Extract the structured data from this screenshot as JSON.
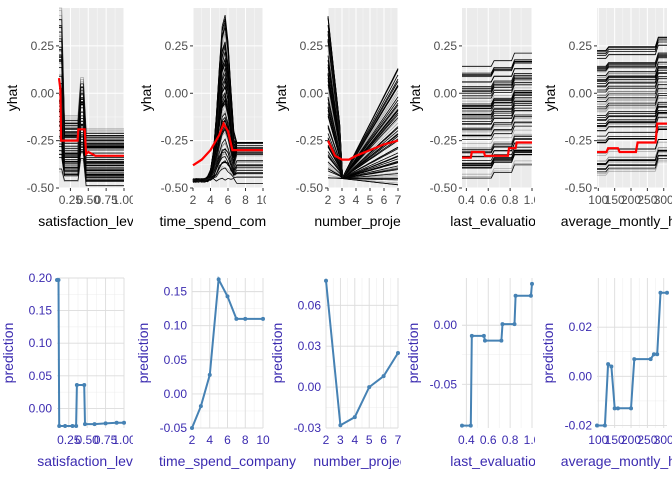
{
  "chart_data": [
    {
      "type": "line",
      "style": "ice",
      "xlabel": "satisfaction_level",
      "ylabel": "yhat",
      "xlim": [
        0.09,
        1.0
      ],
      "ylim": [
        -0.5,
        0.45
      ],
      "xticks": [
        0.25,
        0.5,
        0.75,
        1.0
      ],
      "xtick_labels": [
        "0.25",
        "0.50",
        "0.75",
        "1.00"
      ],
      "yticks": [
        -0.5,
        -0.25,
        0.0,
        0.25
      ],
      "ytick_labels": [
        "-0.50",
        "-0.25",
        "0.00",
        "0.25"
      ],
      "pdp": {
        "x": [
          0.09,
          0.11,
          0.12,
          0.35,
          0.36,
          0.45,
          0.47,
          0.5,
          0.6,
          0.75,
          1.0
        ],
        "y": [
          0.08,
          0.02,
          -0.25,
          -0.25,
          -0.19,
          -0.19,
          -0.32,
          -0.31,
          -0.33,
          -0.33,
          -0.33
        ]
      }
    },
    {
      "type": "line",
      "style": "ice",
      "xlabel": "time_spend_company",
      "ylabel": "yhat",
      "xlim": [
        2,
        10
      ],
      "ylim": [
        -0.5,
        0.45
      ],
      "xticks": [
        2,
        4,
        6,
        8,
        10
      ],
      "xtick_labels": [
        "2",
        "4",
        "6",
        "8",
        "10"
      ],
      "yticks": [
        -0.5,
        -0.25,
        0.0,
        0.25
      ],
      "ytick_labels": [
        "-0.50",
        "-0.25",
        "0.00",
        "0.25"
      ],
      "pdp": {
        "x": [
          2,
          3,
          4,
          5,
          5.5,
          6,
          6.5,
          7,
          8,
          9,
          10
        ],
        "y": [
          -0.38,
          -0.35,
          -0.3,
          -0.22,
          -0.16,
          -0.2,
          -0.3,
          -0.3,
          -0.3,
          -0.3,
          -0.3
        ]
      }
    },
    {
      "type": "line",
      "style": "ice",
      "xlabel": "number_project",
      "ylabel": "yhat",
      "xlim": [
        2,
        7
      ],
      "ylim": [
        -0.5,
        0.45
      ],
      "xticks": [
        2,
        3,
        4,
        5,
        6,
        7
      ],
      "xtick_labels": [
        "2",
        "3",
        "4",
        "5",
        "6",
        "7"
      ],
      "yticks": [
        -0.5,
        -0.25,
        0.0,
        0.25
      ],
      "ytick_labels": [
        "-0.50",
        "-0.25",
        "0.00",
        "0.25"
      ],
      "pdp": {
        "x": [
          2,
          2.5,
          3,
          3.5,
          4,
          5,
          6,
          7
        ],
        "y": [
          -0.25,
          -0.33,
          -0.35,
          -0.35,
          -0.33,
          -0.3,
          -0.27,
          -0.25
        ]
      }
    },
    {
      "type": "line",
      "style": "ice",
      "xlabel": "last_evaluation",
      "ylabel": "yhat",
      "xlim": [
        0.36,
        1.0
      ],
      "ylim": [
        -0.5,
        0.45
      ],
      "xticks": [
        0.4,
        0.6,
        0.8,
        1.0
      ],
      "xtick_labels": [
        "0.4",
        "0.6",
        "0.8",
        "1.0"
      ],
      "yticks": [
        -0.5,
        -0.25,
        0.0,
        0.25
      ],
      "ytick_labels": [
        "-0.50",
        "-0.25",
        "0.00",
        "0.25"
      ],
      "pdp": {
        "x": [
          0.36,
          0.44,
          0.45,
          0.56,
          0.57,
          0.78,
          0.79,
          0.85,
          0.86,
          1.0
        ],
        "y": [
          -0.34,
          -0.34,
          -0.31,
          -0.31,
          -0.33,
          -0.33,
          -0.29,
          -0.29,
          -0.26,
          -0.26
        ]
      }
    },
    {
      "type": "line",
      "style": "ice",
      "xlabel": "average_montly_hours",
      "ylabel": "yhat",
      "xlim": [
        96,
        310
      ],
      "ylim": [
        -0.5,
        0.45
      ],
      "xticks": [
        100,
        150,
        200,
        250,
        300
      ],
      "xtick_labels": [
        "100",
        "150",
        "200",
        "250",
        "300"
      ],
      "yticks": [
        -0.5,
        -0.25,
        0.0,
        0.25
      ],
      "ytick_labels": [
        "-0.50",
        "-0.25",
        "0.00",
        "0.25"
      ],
      "pdp": {
        "x": [
          96,
          125,
          130,
          160,
          165,
          215,
          220,
          275,
          280,
          310
        ],
        "y": [
          -0.31,
          -0.31,
          -0.29,
          -0.29,
          -0.31,
          -0.31,
          -0.26,
          -0.26,
          -0.16,
          -0.16
        ]
      }
    },
    {
      "type": "line",
      "style": "pdp",
      "xlabel": "satisfaction_level",
      "ylabel": "prediction",
      "xlim": [
        0.09,
        1.0
      ],
      "ylim": [
        -0.03,
        0.2
      ],
      "xticks": [
        0.25,
        0.5,
        0.75,
        1.0
      ],
      "xtick_labels": [
        "0.25",
        "0.50",
        "0.75",
        "1.00"
      ],
      "yticks": [
        0.0,
        0.05,
        0.1,
        0.15,
        0.2
      ],
      "ytick_labels": [
        "0.00",
        "0.05",
        "0.10",
        "0.15",
        "0.20"
      ],
      "x": [
        0.09,
        0.11,
        0.12,
        0.2,
        0.3,
        0.35,
        0.36,
        0.46,
        0.47,
        0.6,
        0.75,
        0.9,
        1.0
      ],
      "y": [
        0.197,
        0.197,
        -0.027,
        -0.027,
        -0.027,
        -0.027,
        0.036,
        0.036,
        -0.024,
        -0.024,
        -0.023,
        -0.022,
        -0.022
      ]
    },
    {
      "type": "line",
      "style": "pdp",
      "xlabel": "time_spend_company",
      "ylabel": "prediction",
      "xlim": [
        2,
        10
      ],
      "ylim": [
        -0.05,
        0.17
      ],
      "xticks": [
        2,
        4,
        6,
        8,
        10
      ],
      "xtick_labels": [
        "2",
        "4",
        "6",
        "8",
        "10"
      ],
      "yticks": [
        -0.05,
        0.0,
        0.05,
        0.1,
        0.15
      ],
      "ytick_labels": [
        "-0.05",
        "0.00",
        "0.05",
        "0.10",
        "0.15"
      ],
      "x": [
        2,
        3,
        4,
        5,
        6,
        7,
        8,
        10
      ],
      "y": [
        -0.05,
        -0.018,
        0.028,
        0.168,
        0.143,
        0.11,
        0.11,
        0.11
      ]
    },
    {
      "type": "line",
      "style": "pdp",
      "xlabel": "number_project",
      "ylabel": "prediction",
      "xlim": [
        2,
        7
      ],
      "ylim": [
        -0.03,
        0.08
      ],
      "xticks": [
        2,
        3,
        4,
        5,
        6,
        7
      ],
      "xtick_labels": [
        "2",
        "3",
        "4",
        "5",
        "6",
        "7"
      ],
      "yticks": [
        -0.03,
        0.0,
        0.03,
        0.06
      ],
      "ytick_labels": [
        "-0.03",
        "0.00",
        "0.03",
        "0.06"
      ],
      "x": [
        2,
        3,
        4,
        5,
        6,
        7
      ],
      "y": [
        0.078,
        -0.028,
        -0.022,
        0.0,
        0.008,
        0.025
      ]
    },
    {
      "type": "line",
      "style": "pdp",
      "xlabel": "last_evaluation",
      "ylabel": "prediction",
      "xlim": [
        0.36,
        1.0
      ],
      "ylim": [
        -0.087,
        0.04
      ],
      "xticks": [
        0.4,
        0.6,
        0.8,
        1.0
      ],
      "xtick_labels": [
        "0.4",
        "0.6",
        "0.8",
        "1.0"
      ],
      "yticks": [
        -0.05,
        0.0
      ],
      "ytick_labels": [
        "-0.05",
        "0.00"
      ],
      "x": [
        0.36,
        0.44,
        0.45,
        0.56,
        0.57,
        0.72,
        0.73,
        0.84,
        0.85,
        0.99,
        1.0
      ],
      "y": [
        -0.085,
        -0.085,
        -0.009,
        -0.009,
        -0.013,
        -0.013,
        0.001,
        0.001,
        0.025,
        0.025,
        0.035
      ]
    },
    {
      "type": "line",
      "style": "pdp",
      "xlabel": "average_montly_hours",
      "ylabel": "prediction",
      "xlim": [
        96,
        310
      ],
      "ylim": [
        -0.021,
        0.04
      ],
      "xticks": [
        100,
        150,
        200,
        250,
        300
      ],
      "xtick_labels": [
        "100",
        "150",
        "200",
        "250",
        "300"
      ],
      "yticks": [
        -0.02,
        0.0,
        0.02
      ],
      "ytick_labels": [
        "-0.02",
        "0.00",
        "0.02"
      ],
      "x": [
        96,
        120,
        130,
        140,
        150,
        160,
        200,
        210,
        260,
        270,
        280,
        290,
        310
      ],
      "y": [
        -0.02,
        -0.02,
        0.005,
        0.004,
        -0.013,
        -0.013,
        -0.013,
        0.007,
        0.007,
        0.009,
        0.009,
        0.034,
        0.034
      ]
    }
  ]
}
